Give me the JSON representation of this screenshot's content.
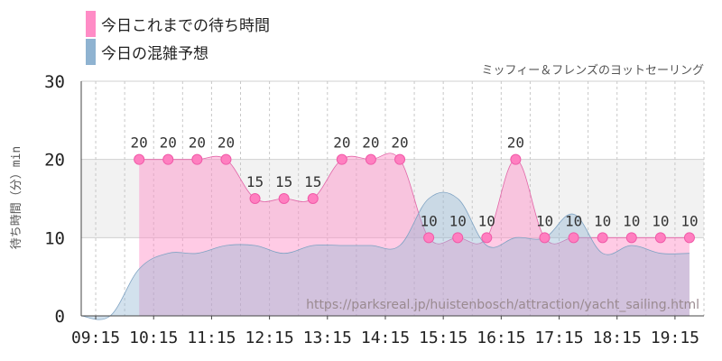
{
  "legend": {
    "items": [
      {
        "label": "今日これまでの待ち時間",
        "color": "#ff8cc6"
      },
      {
        "label": "今日の混雑予想",
        "color": "#8fb3d1"
      }
    ]
  },
  "chart_data": {
    "type": "area",
    "title": "ミッフィー＆フレンズのヨットセーリング",
    "ylabel": "待ち時間（分）min",
    "xlabel": "",
    "watermark": "https://parksreal.jp/huistenbosch/attraction/yacht_sailing.html",
    "ylim": [
      0,
      30
    ],
    "yticks": [
      "0",
      "10",
      "20",
      "30"
    ],
    "xlim": [
      "09:00",
      "19:45"
    ],
    "xtick_labels": [
      "09:15",
      "10:15",
      "11:15",
      "12:15",
      "13:15",
      "14:15",
      "15:15",
      "16:15",
      "17:15",
      "18:15",
      "19:15"
    ],
    "grid": true,
    "series": [
      {
        "name": "今日これまでの待ち時間",
        "color": "#ff8cc6",
        "points": [
          {
            "time": "10:00",
            "value": 20
          },
          {
            "time": "10:30",
            "value": 20
          },
          {
            "time": "11:00",
            "value": 20
          },
          {
            "time": "11:30",
            "value": 20
          },
          {
            "time": "12:00",
            "value": 15
          },
          {
            "time": "12:30",
            "value": 15
          },
          {
            "time": "13:00",
            "value": 15
          },
          {
            "time": "13:30",
            "value": 20
          },
          {
            "time": "14:00",
            "value": 20
          },
          {
            "time": "14:30",
            "value": 20
          },
          {
            "time": "15:00",
            "value": 10
          },
          {
            "time": "15:30",
            "value": 10
          },
          {
            "time": "16:00",
            "value": 10
          },
          {
            "time": "16:30",
            "value": 20
          },
          {
            "time": "17:00",
            "value": 10
          },
          {
            "time": "17:30",
            "value": 10
          },
          {
            "time": "18:00",
            "value": 10
          },
          {
            "time": "18:30",
            "value": 10
          },
          {
            "time": "19:00",
            "value": 10
          },
          {
            "time": "19:30",
            "value": 10
          }
        ]
      },
      {
        "name": "今日の混雑予想",
        "color": "#8fb3d1",
        "points": [
          {
            "time": "09:00",
            "value": 0
          },
          {
            "time": "09:30",
            "value": 0
          },
          {
            "time": "10:00",
            "value": 6
          },
          {
            "time": "10:30",
            "value": 8
          },
          {
            "time": "11:00",
            "value": 8
          },
          {
            "time": "11:30",
            "value": 9
          },
          {
            "time": "12:00",
            "value": 9
          },
          {
            "time": "12:30",
            "value": 8
          },
          {
            "time": "13:00",
            "value": 9
          },
          {
            "time": "13:30",
            "value": 9
          },
          {
            "time": "14:00",
            "value": 9
          },
          {
            "time": "14:30",
            "value": 9
          },
          {
            "time": "15:00",
            "value": 15
          },
          {
            "time": "15:30",
            "value": 15
          },
          {
            "time": "16:00",
            "value": 9
          },
          {
            "time": "16:30",
            "value": 10
          },
          {
            "time": "17:00",
            "value": 10
          },
          {
            "time": "17:30",
            "value": 13
          },
          {
            "time": "18:00",
            "value": 8
          },
          {
            "time": "18:30",
            "value": 9
          },
          {
            "time": "19:00",
            "value": 8
          },
          {
            "time": "19:30",
            "value": 8
          }
        ]
      }
    ]
  }
}
